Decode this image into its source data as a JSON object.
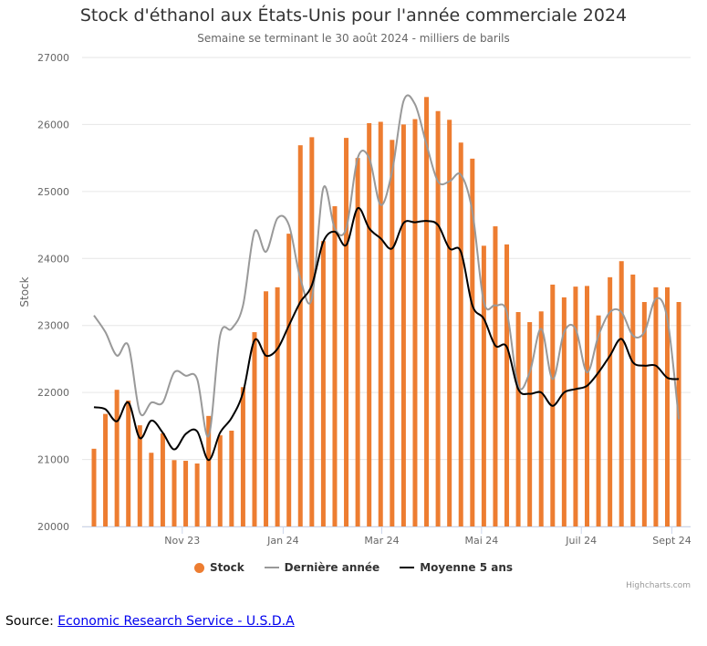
{
  "chart_data": {
    "type": "bar",
    "title": "Stock d'éthanol aux États-Unis pour l'année commerciale 2024",
    "subtitle": "Semaine se terminant le 30 août 2024 - milliers de barils",
    "ylabel": "Stock",
    "ylim": [
      20000,
      27000
    ],
    "yticks": [
      20000,
      21000,
      22000,
      23000,
      24000,
      25000,
      26000,
      27000
    ],
    "x_tick_labels": [
      "Nov 23",
      "Jan 24",
      "Mar 24",
      "Mai 24",
      "Juil 24",
      "Sept 24"
    ],
    "grid": true,
    "legend": "bottom",
    "series": [
      {
        "name": "Stock",
        "type": "bar",
        "color": "#ed7d31",
        "values": [
          21160,
          21680,
          22040,
          21880,
          21510,
          21100,
          21390,
          20990,
          20980,
          20940,
          21650,
          21360,
          21430,
          22080,
          22900,
          23510,
          23570,
          24370,
          25690,
          25810,
          24260,
          24780,
          25800,
          25500,
          26020,
          26040,
          25770,
          26000,
          26080,
          26410,
          26200,
          26070,
          25730,
          25490,
          24190,
          24480,
          24210,
          23200,
          23050,
          23210,
          23610,
          23420,
          23580,
          23590,
          23150,
          23720,
          23960,
          23760,
          23350,
          23570,
          23570,
          23350
        ]
      },
      {
        "name": "Dernière année",
        "type": "line",
        "color": "#999999",
        "values": [
          23150,
          22900,
          22550,
          22700,
          21700,
          21850,
          21850,
          22300,
          22250,
          22200,
          21350,
          22850,
          22950,
          23300,
          24400,
          24100,
          24600,
          24500,
          23700,
          23400,
          25050,
          24450,
          24450,
          25500,
          25500,
          24800,
          25300,
          26350,
          26300,
          25700,
          25150,
          25150,
          25250,
          24700,
          23350,
          23300,
          23200,
          22100,
          22300,
          22950,
          22200,
          22900,
          22950,
          22300,
          22850,
          23200,
          23200,
          22850,
          22900,
          23400,
          23100,
          21600
        ]
      },
      {
        "name": "Moyenne 5 ans",
        "type": "line",
        "color": "#000000",
        "values": [
          21780,
          21750,
          21570,
          21850,
          21320,
          21580,
          21400,
          21150,
          21380,
          21420,
          20990,
          21400,
          21620,
          22000,
          22780,
          22550,
          22650,
          23000,
          23350,
          23600,
          24250,
          24400,
          24200,
          24750,
          24450,
          24300,
          24150,
          24530,
          24540,
          24560,
          24500,
          24150,
          24100,
          23300,
          23100,
          22700,
          22680,
          22050,
          21980,
          22000,
          21800,
          22000,
          22050,
          22100,
          22300,
          22550,
          22800,
          22450,
          22400,
          22400,
          22220,
          22200
        ]
      }
    ]
  },
  "credit": "Highcharts.com",
  "source": {
    "label": "Source: ",
    "link": "Economic Research Service - U.S.D.A"
  }
}
